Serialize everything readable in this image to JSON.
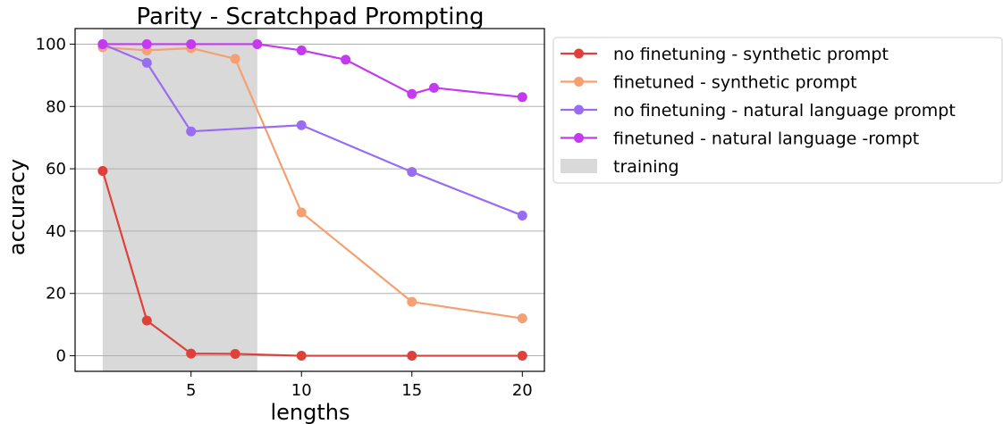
{
  "chart_data": {
    "type": "line",
    "title": "Parity - Scratchpad Prompting",
    "xlabel": "lengths",
    "ylabel": "accuracy",
    "xlim": [
      -0.25,
      21.0
    ],
    "ylim": [
      -5,
      105
    ],
    "xticks": [
      5,
      10,
      15,
      20
    ],
    "yticks": [
      0,
      20,
      40,
      60,
      80,
      100
    ],
    "grid": "horizontal",
    "legend_position": "outside-right",
    "shaded_region": {
      "label": "training",
      "x_start": 1,
      "x_end": 8,
      "color": "#d9d9d9"
    },
    "series": [
      {
        "name": "no finetuning - synthetic prompt",
        "color": "#e0403a",
        "x": [
          1,
          3,
          5,
          7,
          10,
          15,
          20
        ],
        "y": [
          59.3,
          11.3,
          0.7,
          0.6,
          0,
          0,
          0
        ]
      },
      {
        "name": "finetuned - synthetic prompt",
        "color": "#f4a072",
        "x": [
          1,
          3,
          5,
          7,
          10,
          15,
          20
        ],
        "y": [
          99,
          98,
          98.7,
          95.3,
          46,
          17.3,
          12
        ]
      },
      {
        "name": "no finetuning - natural language prompt",
        "color": "#9a6cf2",
        "x": [
          1,
          3,
          5,
          10,
          15,
          20
        ],
        "y": [
          100,
          94,
          72,
          74,
          59,
          45
        ]
      },
      {
        "name": "finetuned - natural language -rompt",
        "color": "#c33af0",
        "x": [
          1,
          3,
          5,
          8,
          10,
          12,
          15,
          16,
          20
        ],
        "y": [
          100,
          100,
          100,
          100,
          98,
          95,
          84,
          86,
          83
        ]
      }
    ]
  }
}
